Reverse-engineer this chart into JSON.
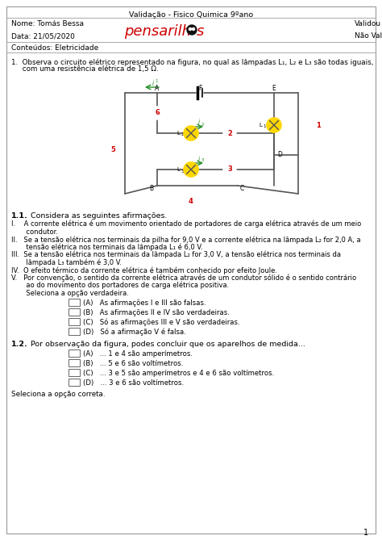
{
  "title": "Validação - Fisico Quimica 9ºano",
  "name_label": "Nome: Tomás Bessa",
  "date_label": "Data: 21/05/2020",
  "validated": "Validou",
  "not_validated": "Não Validou",
  "contents": "Conteúdos: Eletricidade",
  "q1_line1": "1.  Observa o circuito elétrico representado na figura, no qual as lâmpadas L",
  "q1_subs": [
    "1",
    "2",
    "3"
  ],
  "q1_line1b": " são todas iguais,",
  "q1_line2": "     com uma resistência elétrica de 1,5 Ω.",
  "q11_bold": "1.1.",
  "q11_rest": "  Considera as seguintes afirmações.",
  "aff_I": "I.    A corrente elétrica é um movimento orientado de portadores de carga elétrica através de um meio",
  "aff_I2": "       condutor.",
  "aff_II": "II.   Se a tensão elétrica nos terminais da pilha for 9,0 V e a corrente elétrica na lâmpada L₂ for 2,0 A, a",
  "aff_II2": "       tensão elétrica nos terminais da lâmpada L₁ é 6,0 V.",
  "aff_III": "III.  Se a tensão elétrica nos terminais da lâmpada L₂ for 3,0 V, a tensão elétrica nos terminais da",
  "aff_III2": "       lâmpada L₃ também é 3,0 V.",
  "aff_IV": "IV.  O efeito térmico da corrente elétrica é também conhecido por efeito Joule.",
  "aff_V": "V.   Por convenção, o sentido da corrente elétrica através de um condutor sólido é o sentido contrário",
  "aff_V2": "       ao do movimento dos portadores de carga elétrica positiva.",
  "select_true": "       Seleciona a opção verdadeira.",
  "opt11_A": "(A)   As afirmações I e III são falsas.",
  "opt11_B": "(B)   As afirmações II e IV são verdadeiras.",
  "opt11_C": "(C)   Só as afirmações III e V são verdadeiras.",
  "opt11_D": "(D)   Só a afirmação V é falsa.",
  "q12_bold": "1.2.",
  "q12_rest": "  Por observação da figura, podes concluir que os aparelhos de medida...",
  "opt12_A": "(A)   ... 1 e 4 são amperímetros.",
  "opt12_B": "(B)   ... 5 e 6 são voltímetros.",
  "opt12_C": "(C)   ... 3 e 5 são amperímetros e 4 e 6 são voltímetros.",
  "opt12_D": "(D)   ... 3 e 6 são voltímetros.",
  "select_correct": "Seleciona a opção correta.",
  "page_num": "1",
  "bg_color": "#ffffff",
  "header_line_color": "#aaaaaa",
  "wire_color": "#555555",
  "lamp_fill": "#FFD700",
  "meter_color": "#cc0000",
  "arrow_color": "#228B22",
  "logo_color": "#cc0000",
  "text_fs": 6.5,
  "small_fs": 6.0
}
